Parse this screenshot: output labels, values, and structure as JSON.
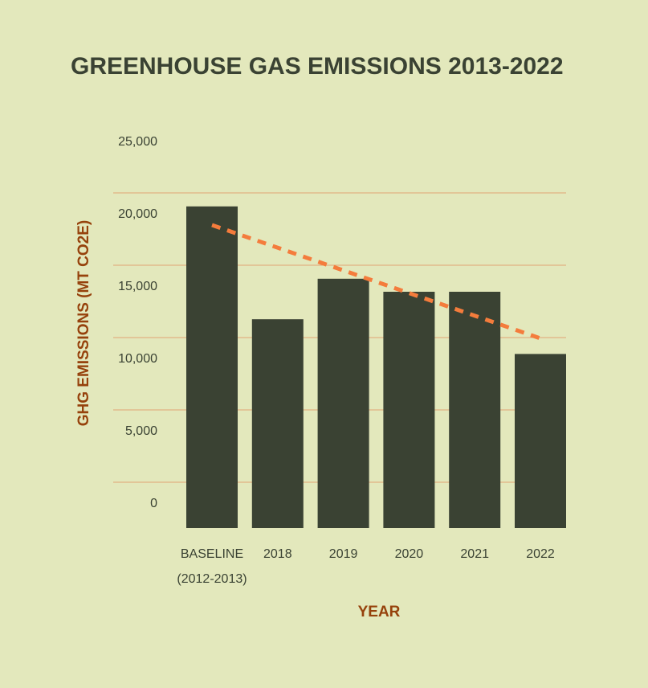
{
  "chart_data": {
    "type": "bar",
    "title": "GREENHOUSE GAS EMISSIONS 2013-2022",
    "xlabel": "YEAR",
    "ylabel": "GHG EMISSIONS (MT CO2E)",
    "categories": [
      [
        "BASELINE",
        "(2012-2013)"
      ],
      [
        "2018"
      ],
      [
        "2019"
      ],
      [
        "2020"
      ],
      [
        "2021"
      ],
      [
        "2022"
      ]
    ],
    "values": [
      22900,
      15100,
      17900,
      17000,
      17000,
      12700
    ],
    "ylim": [
      -1800,
      25000
    ],
    "yticks": [
      0,
      5000,
      10000,
      15000,
      20000,
      25000
    ],
    "ytick_labels": [
      "0",
      "5,000",
      "10,000",
      "15,000",
      "20,000",
      "25,000"
    ],
    "trendline": {
      "style": "dashed",
      "start": 21000,
      "end": 11500
    },
    "grid": true,
    "colors": {
      "background": "#e3e8bc",
      "bar": "#3a4233",
      "trend": "#f47c3c",
      "grid": "#e0a373",
      "axis_label": "#96420c",
      "text": "#3a4233"
    }
  }
}
